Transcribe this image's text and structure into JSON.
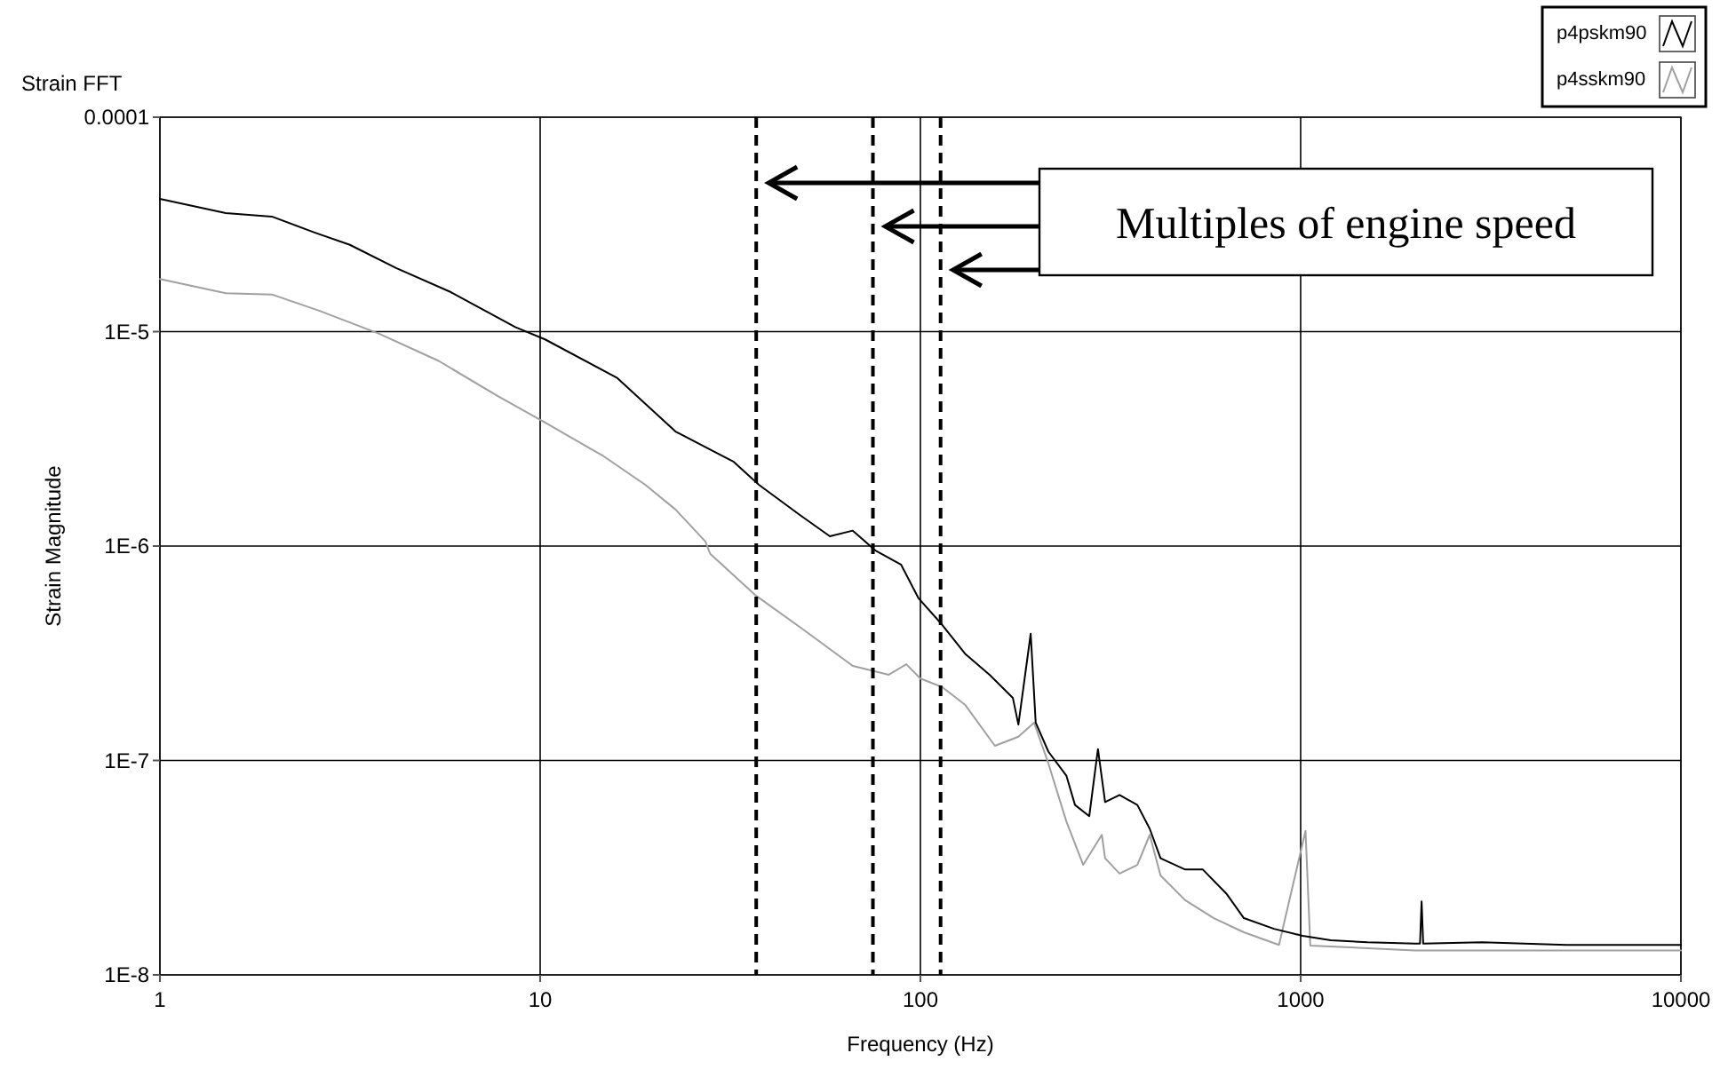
{
  "chart_data": {
    "type": "line",
    "title": "Strain FFT",
    "xlabel": "Frequency (Hz)",
    "ylabel": "Strain Magnitude",
    "log": "xy",
    "grid": true,
    "legend": "top right",
    "marker": "none",
    "line_style": "solid",
    "xlim": [
      1,
      10000
    ],
    "xticks": [
      1,
      10,
      100,
      1000,
      10000
    ],
    "ylim": [
      1e-08,
      0.0001
    ],
    "yticks": [
      {
        "value": 1e-08,
        "label": "1E-8"
      },
      {
        "value": 1e-07,
        "label": "1E-7"
      },
      {
        "value": 1e-06,
        "label": "1E-6"
      },
      {
        "value": 1e-05,
        "label": "1E-5"
      },
      0.0001
    ],
    "series": [
      {
        "name": "p4pskm90",
        "color": "#000000",
        "x": [
          1,
          1.49,
          1.97,
          2.55,
          3.16,
          4.18,
          5.77,
          8.6,
          10.3,
          15.9,
          22.7,
          32.3,
          37.6,
          48.1,
          57.8,
          66.4,
          76.4,
          88.9,
          98.9,
          114,
          131,
          152,
          175,
          181,
          195,
          201,
          217,
          242,
          255,
          278,
          293,
          306,
          334,
          372,
          401,
          428,
          497,
          553,
          637,
          709,
          851,
          1012,
          1200,
          1500,
          2000,
          2060,
          2080,
          2100,
          3000,
          5000,
          10000
        ],
        "values": [
          4.16e-05,
          3.57e-05,
          3.44e-05,
          2.9e-05,
          2.54e-05,
          1.98e-05,
          1.54e-05,
          1.05e-05,
          9.2e-06,
          6.1e-06,
          3.42e-06,
          2.47e-06,
          1.93e-06,
          1.4e-06,
          1.11e-06,
          1.18e-06,
          9.5e-07,
          8.2e-07,
          5.7e-07,
          4.3e-07,
          3.15e-07,
          2.51e-07,
          1.96e-07,
          1.47e-07,
          3.9e-07,
          1.5e-07,
          1.1e-07,
          8.5e-08,
          6.2e-08,
          5.5e-08,
          1.13e-07,
          6.4e-08,
          6.9e-08,
          6.2e-08,
          4.8e-08,
          3.5e-08,
          3.1e-08,
          3.1e-08,
          2.4e-08,
          1.84e-08,
          1.64e-08,
          1.52e-08,
          1.45e-08,
          1.42e-08,
          1.4e-08,
          1.4e-08,
          2.2e-08,
          1.4e-08,
          1.42e-08,
          1.38e-08,
          1.38e-08
        ]
      },
      {
        "name": "p4sskm90",
        "color": "#a0a0a0",
        "x": [
          1,
          1.49,
          1.97,
          2.63,
          3.76,
          5.41,
          7.74,
          10.3,
          14.7,
          18.9,
          22.7,
          27.2,
          28,
          36.8,
          48.1,
          66.4,
          82.6,
          91.8,
          100,
          114,
          131,
          157,
          181,
          199,
          217,
          242,
          268,
          300,
          306,
          334,
          372,
          401,
          428,
          497,
          591,
          709,
          877,
          1030,
          1060,
          2000,
          10000
        ],
        "values": [
          1.76e-05,
          1.51e-05,
          1.49e-05,
          1.25e-05,
          9.8e-06,
          7.3e-06,
          5e-06,
          3.77e-06,
          2.62e-06,
          1.93e-06,
          1.48e-06,
          1.05e-06,
          9.2e-07,
          5.9e-07,
          4.2e-07,
          2.76e-07,
          2.51e-07,
          2.81e-07,
          2.41e-07,
          2.2e-07,
          1.82e-07,
          1.17e-07,
          1.29e-07,
          1.5e-07,
          9.7e-08,
          5.2e-08,
          3.26e-08,
          4.5e-08,
          3.5e-08,
          2.97e-08,
          3.26e-08,
          4.5e-08,
          2.91e-08,
          2.23e-08,
          1.84e-08,
          1.58e-08,
          1.38e-08,
          4.7e-08,
          1.37e-08,
          1.3e-08,
          1.3e-08
        ]
      }
    ],
    "ref_lines": [
      {
        "axis": "x",
        "value": 37,
        "color": "#000000",
        "line_style": "dashed"
      },
      {
        "axis": "x",
        "value": 75,
        "color": "#000000",
        "line_style": "dashed"
      },
      {
        "axis": "x",
        "value": 113,
        "color": "#000000",
        "line_style": "dashed"
      }
    ],
    "annotations": [
      "Multiples of engine speed"
    ]
  }
}
